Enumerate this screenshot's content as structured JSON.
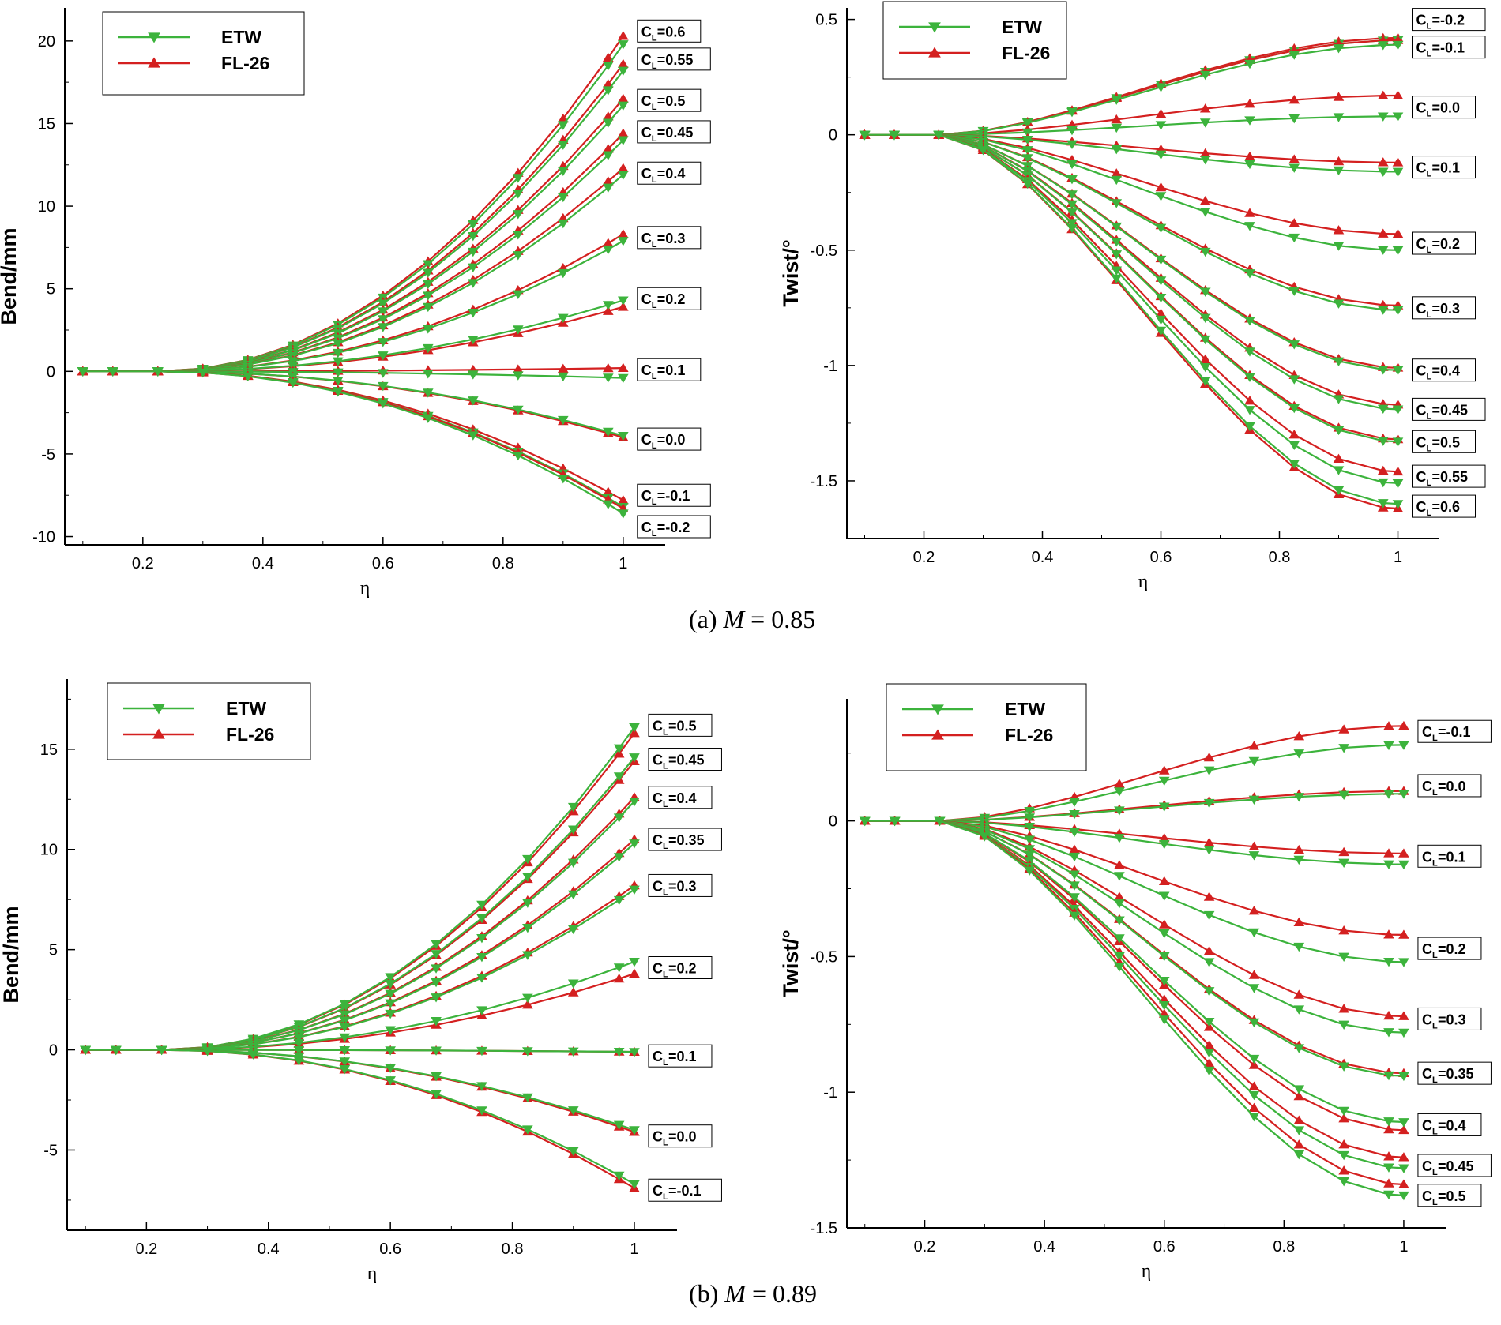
{
  "captions": {
    "a": {
      "prefix": "(a) ",
      "var": "M",
      "suffix": " = 0.85"
    },
    "b": {
      "prefix": "(b) ",
      "var": "M",
      "suffix": " = 0.89"
    }
  },
  "colors": {
    "ETW": "#3cb33c",
    "FL-26": "#d42020"
  },
  "chart_data": [
    {
      "id": "a-bend",
      "type": "line",
      "ylabel": "Bend/mm",
      "xlabel": "η",
      "xlim": [
        0.07,
        1.07
      ],
      "ylim": [
        -10.5,
        22
      ],
      "xticks": [
        0.2,
        0.4,
        0.6,
        0.8,
        1
      ],
      "xtick_labels": [
        "0.2",
        "0.4",
        "0.6",
        "0.8",
        "1"
      ],
      "yticks": [
        -10,
        -5,
        0,
        5,
        10,
        15,
        20
      ],
      "ytick_labels": [
        "-10",
        "-5",
        "0",
        "5",
        "10",
        "15",
        "20"
      ],
      "legend": {
        "position": "top-left",
        "entries": [
          "ETW",
          "FL-26"
        ]
      },
      "eta": [
        0.1,
        0.15,
        0.225,
        0.3,
        0.375,
        0.45,
        0.525,
        0.6,
        0.675,
        0.75,
        0.825,
        0.9,
        0.975,
        1.0
      ],
      "cases": [
        {
          "cl": "0.6",
          "etw": 19.8,
          "fl": 20.3
        },
        {
          "cl": "0.55",
          "etw": 18.2,
          "fl": 18.6
        },
        {
          "cl": "0.5",
          "etw": 16.1,
          "fl": 16.5
        },
        {
          "cl": "0.45",
          "etw": 14.0,
          "fl": 14.4
        },
        {
          "cl": "0.4",
          "etw": 11.9,
          "fl": 12.3
        },
        {
          "cl": "0.3",
          "etw": 7.9,
          "fl": 8.3
        },
        {
          "cl": "0.2",
          "etw": 4.3,
          "fl": 3.9
        },
        {
          "cl": "0.1",
          "etw": -0.4,
          "fl": 0.2
        },
        {
          "cl": "0.0",
          "etw": -3.9,
          "fl": -4.0
        },
        {
          "cl": "-0.1",
          "etw": -8.2,
          "fl": -7.8
        },
        {
          "cl": "-0.2",
          "etw": -8.6,
          "fl": -8.3
        }
      ],
      "case_labels": [
        {
          "text": "=0.6",
          "y": 20.6
        },
        {
          "text": "=0.55",
          "y": 18.9
        },
        {
          "text": "=0.5",
          "y": 16.4
        },
        {
          "text": "=0.45",
          "y": 14.5
        },
        {
          "text": "=0.4",
          "y": 12.0
        },
        {
          "text": "=0.3",
          "y": 8.1
        },
        {
          "text": "=0.2",
          "y": 4.4
        },
        {
          "text": "=0.1",
          "y": 0.1
        },
        {
          "text": "=0.0",
          "y": -4.1
        },
        {
          "text": "=-0.1",
          "y": -7.5
        },
        {
          "text": "=-0.2",
          "y": -9.4
        }
      ]
    },
    {
      "id": "a-twist",
      "type": "line",
      "ylabel": "Twist/°",
      "xlabel": "η",
      "xlim": [
        0.07,
        1.07
      ],
      "ylim": [
        -1.75,
        0.55
      ],
      "xticks": [
        0.2,
        0.4,
        0.6,
        0.8,
        1
      ],
      "xtick_labels": [
        "0.2",
        "0.4",
        "0.6",
        "0.8",
        "1"
      ],
      "yticks": [
        -1.5,
        -1,
        -0.5,
        0,
        0.5
      ],
      "ytick_labels": [
        "-1.5",
        "-1",
        "-0.5",
        "0",
        "0.5"
      ],
      "legend": {
        "position": "top-left",
        "entries": [
          "ETW",
          "FL-26"
        ]
      },
      "eta": [
        0.1,
        0.15,
        0.225,
        0.3,
        0.375,
        0.45,
        0.525,
        0.6,
        0.675,
        0.75,
        0.825,
        0.9,
        0.975,
        1.0
      ],
      "cases": [
        {
          "cl": "-0.2",
          "etw": 0.41,
          "fl": 0.42
        },
        {
          "cl": "-0.1",
          "etw": 0.39,
          "fl": 0.41
        },
        {
          "cl": "0.0",
          "etw": 0.08,
          "fl": 0.17
        },
        {
          "cl": "0.1",
          "etw": -0.16,
          "fl": -0.12
        },
        {
          "cl": "0.2",
          "etw": -0.5,
          "fl": -0.43
        },
        {
          "cl": "0.3",
          "etw": -0.76,
          "fl": -0.74
        },
        {
          "cl": "0.4",
          "etw": -1.02,
          "fl": -1.01
        },
        {
          "cl": "0.45",
          "etw": -1.19,
          "fl": -1.17
        },
        {
          "cl": "0.5",
          "etw": -1.33,
          "fl": -1.32
        },
        {
          "cl": "0.55",
          "etw": -1.51,
          "fl": -1.46
        },
        {
          "cl": "0.6",
          "etw": -1.6,
          "fl": -1.62
        }
      ],
      "case_labels": [
        {
          "text": "=-0.2",
          "y": 0.5
        },
        {
          "text": "=-0.1",
          "y": 0.38
        },
        {
          "text": "=0.0",
          "y": 0.12
        },
        {
          "text": "=0.1",
          "y": -0.14
        },
        {
          "text": "=0.2",
          "y": -0.47
        },
        {
          "text": "=0.3",
          "y": -0.75
        },
        {
          "text": "=0.4",
          "y": -1.02
        },
        {
          "text": "=0.45",
          "y": -1.19
        },
        {
          "text": "=0.5",
          "y": -1.33
        },
        {
          "text": "=0.55",
          "y": -1.48
        },
        {
          "text": "=0.6",
          "y": -1.61
        }
      ]
    },
    {
      "id": "b-bend",
      "type": "line",
      "ylabel": "Bend/mm",
      "xlabel": "η",
      "xlim": [
        0.07,
        1.07
      ],
      "ylim": [
        -9,
        18.5
      ],
      "xticks": [
        0.2,
        0.4,
        0.6,
        0.8,
        1
      ],
      "xtick_labels": [
        "0.2",
        "0.4",
        "0.6",
        "0.8",
        "1"
      ],
      "yticks": [
        -5,
        0,
        5,
        10,
        15
      ],
      "ytick_labels": [
        "-5",
        "0",
        "5",
        "10",
        "15"
      ],
      "legend": {
        "position": "top-left",
        "entries": [
          "ETW",
          "FL-26"
        ]
      },
      "eta": [
        0.1,
        0.15,
        0.225,
        0.3,
        0.375,
        0.45,
        0.525,
        0.6,
        0.675,
        0.75,
        0.825,
        0.9,
        0.975,
        1.0
      ],
      "cases": [
        {
          "cl": "0.5",
          "etw": 16.1,
          "fl": 15.8
        },
        {
          "cl": "0.45",
          "etw": 14.6,
          "fl": 14.4
        },
        {
          "cl": "0.4",
          "etw": 12.4,
          "fl": 12.6
        },
        {
          "cl": "0.35",
          "etw": 10.3,
          "fl": 10.5
        },
        {
          "cl": "0.3",
          "etw": 8.0,
          "fl": 8.2
        },
        {
          "cl": "0.2",
          "etw": 4.4,
          "fl": 3.8
        },
        {
          "cl": "0.1",
          "etw": -0.1,
          "fl": -0.1
        },
        {
          "cl": "0.0",
          "etw": -4.0,
          "fl": -4.1
        },
        {
          "cl": "-0.1",
          "etw": -6.7,
          "fl": -6.9
        }
      ],
      "case_labels": [
        {
          "text": "=0.5",
          "y": 16.2
        },
        {
          "text": "=0.45",
          "y": 14.5
        },
        {
          "text": "=0.4",
          "y": 12.6
        },
        {
          "text": "=0.35",
          "y": 10.5
        },
        {
          "text": "=0.3",
          "y": 8.2
        },
        {
          "text": "=0.2",
          "y": 4.1
        },
        {
          "text": "=0.1",
          "y": -0.3
        },
        {
          "text": "=0.0",
          "y": -4.3
        },
        {
          "text": "=-0.1",
          "y": -7.0
        }
      ]
    },
    {
      "id": "b-twist",
      "type": "line",
      "ylabel": "Twist/°",
      "xlabel": "η",
      "xlim": [
        0.07,
        1.07
      ],
      "ylim": [
        -1.5,
        0.45
      ],
      "xticks": [
        0.2,
        0.4,
        0.6,
        0.8,
        1
      ],
      "xtick_labels": [
        "0.2",
        "0.4",
        "0.6",
        "0.8",
        "1"
      ],
      "yticks": [
        -1.5,
        -1,
        -0.5,
        0
      ],
      "ytick_labels": [
        "-1.5",
        "-1",
        "-0.5",
        "0"
      ],
      "legend": {
        "position": "top-left",
        "entries": [
          "ETW",
          "FL-26"
        ]
      },
      "eta": [
        0.1,
        0.15,
        0.225,
        0.3,
        0.375,
        0.45,
        0.525,
        0.6,
        0.675,
        0.75,
        0.825,
        0.9,
        0.975,
        1.0
      ],
      "cases": [
        {
          "cl": "-0.1",
          "etw": 0.28,
          "fl": 0.35
        },
        {
          "cl": "0.0",
          "etw": 0.1,
          "fl": 0.11
        },
        {
          "cl": "0.1",
          "etw": -0.16,
          "fl": -0.12
        },
        {
          "cl": "0.2",
          "etw": -0.52,
          "fl": -0.42
        },
        {
          "cl": "0.3",
          "etw": -0.78,
          "fl": -0.72
        },
        {
          "cl": "0.35",
          "etw": -0.94,
          "fl": -0.93
        },
        {
          "cl": "0.4",
          "etw": -1.11,
          "fl": -1.14
        },
        {
          "cl": "0.45",
          "etw": -1.28,
          "fl": -1.24
        },
        {
          "cl": "0.5",
          "etw": -1.38,
          "fl": -1.34
        }
      ],
      "case_labels": [
        {
          "text": "=-0.1",
          "y": 0.33
        },
        {
          "text": "=0.0",
          "y": 0.13
        },
        {
          "text": "=0.1",
          "y": -0.13
        },
        {
          "text": "=0.2",
          "y": -0.47
        },
        {
          "text": "=0.3",
          "y": -0.73
        },
        {
          "text": "=0.35",
          "y": -0.93
        },
        {
          "text": "=0.4",
          "y": -1.12
        },
        {
          "text": "=0.45",
          "y": -1.27
        },
        {
          "text": "=0.5",
          "y": -1.38
        }
      ]
    }
  ]
}
